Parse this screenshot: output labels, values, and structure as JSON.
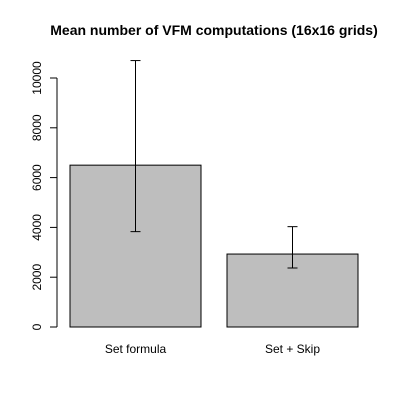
{
  "chart_data": {
    "type": "bar",
    "title": "Mean number of VFM computations (16x16 grids)",
    "categories": [
      "Set formula",
      "Set + Skip"
    ],
    "values": [
      6500,
      2930
    ],
    "error_bars": {
      "low": [
        3830,
        2370
      ],
      "high": [
        10700,
        4030
      ]
    },
    "ylim": [
      0,
      10700
    ],
    "y_ticks": [
      0,
      2000,
      4000,
      6000,
      8000,
      10000
    ],
    "y_tick_labels": [
      "0",
      "2000",
      "4000",
      "6000",
      "8000",
      "10000"
    ],
    "xlabel": "",
    "ylabel": "",
    "grid": false,
    "bar_color": "#bebebe",
    "bar_border_color": "#000000",
    "error_bar_color": "#000000"
  }
}
